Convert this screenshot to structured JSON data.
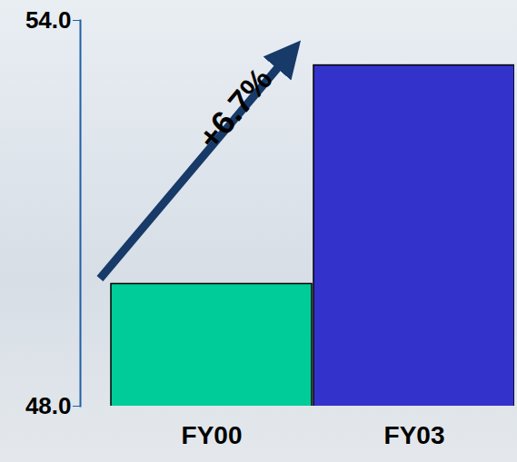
{
  "chart_data": {
    "type": "bar",
    "categories": [
      "FY00",
      "FY03"
    ],
    "values": [
      49.9,
      53.3
    ],
    "colors": [
      "#00cc99",
      "#3333cc"
    ],
    "ylim": [
      48,
      54
    ],
    "yticks": [
      48,
      54
    ],
    "annotations": [
      "+6.7%"
    ]
  }
}
